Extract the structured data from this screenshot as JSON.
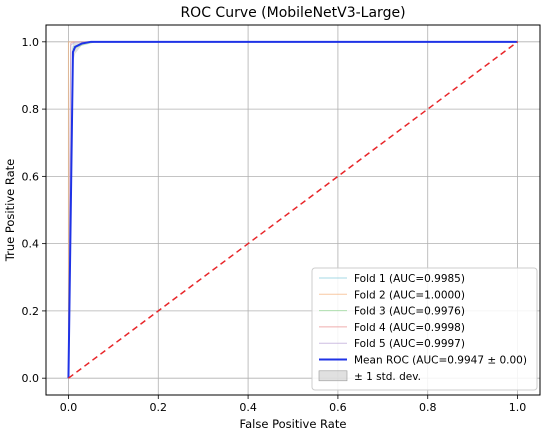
{
  "chart_data": {
    "type": "line",
    "title": "ROC Curve (MobileNetV3-Large)",
    "xlabel": "False Positive Rate",
    "ylabel": "True Positive Rate",
    "xlim": [
      -0.05,
      1.05
    ],
    "ylim": [
      -0.05,
      1.05
    ],
    "xticks": [
      "0.0",
      "0.2",
      "0.4",
      "0.6",
      "0.8",
      "1.0"
    ],
    "yticks": [
      "0.0",
      "0.2",
      "0.4",
      "0.6",
      "0.8",
      "1.0"
    ],
    "grid": true,
    "legend_position": "lower-right",
    "series": [
      {
        "name": "Fold 1 (AUC=0.9985)",
        "color": "#7fc7d8",
        "x": [
          0,
          0.0,
          0.01,
          0.02,
          0.03,
          0.05,
          1.0
        ],
        "y": [
          0,
          0.0,
          0.985,
          0.99,
          0.995,
          1.0,
          1.0
        ]
      },
      {
        "name": "Fold 2 (AUC=1.0000)",
        "color": "#f5b27a",
        "x": [
          0,
          0.0,
          0.0,
          1.0
        ],
        "y": [
          0,
          0.0,
          1.0,
          1.0
        ]
      },
      {
        "name": "Fold 3 (AUC=0.9976)",
        "color": "#8dd18d",
        "x": [
          0,
          0.0,
          0.01,
          0.03,
          0.06,
          1.0
        ],
        "y": [
          0,
          0.0,
          0.98,
          0.99,
          1.0,
          1.0
        ]
      },
      {
        "name": "Fold 4 (AUC=0.9998)",
        "color": "#e88c8c",
        "x": [
          0,
          0.0,
          0.005,
          0.01,
          1.0
        ],
        "y": [
          0,
          0.0,
          0.995,
          1.0,
          1.0
        ]
      },
      {
        "name": "Fold 5 (AUC=0.9997)",
        "color": "#b9a3d6",
        "x": [
          0,
          0.0,
          0.005,
          0.015,
          1.0
        ],
        "y": [
          0,
          0.0,
          0.99,
          1.0,
          1.0
        ]
      },
      {
        "name": "Mean ROC (AUC=0.9947 ± 0.00)",
        "color": "#1f33e6",
        "x": [
          0,
          0.01,
          0.015,
          0.03,
          0.05,
          1.0
        ],
        "y": [
          0,
          0.97,
          0.985,
          0.995,
          1.0,
          1.0
        ]
      }
    ],
    "std_band": {
      "name": "± 1 std. dev.",
      "color": "#bbbbbb",
      "x": [
        0,
        0.01,
        0.015,
        0.03,
        0.05,
        1.0
      ],
      "upper": [
        0,
        1.0,
        1.0,
        1.0,
        1.0,
        1.0
      ],
      "lower": [
        0,
        0.94,
        0.965,
        0.99,
        1.0,
        1.0
      ]
    },
    "chance_line": {
      "color": "#e8262a",
      "x": [
        0,
        1
      ],
      "y": [
        0,
        1
      ]
    }
  }
}
